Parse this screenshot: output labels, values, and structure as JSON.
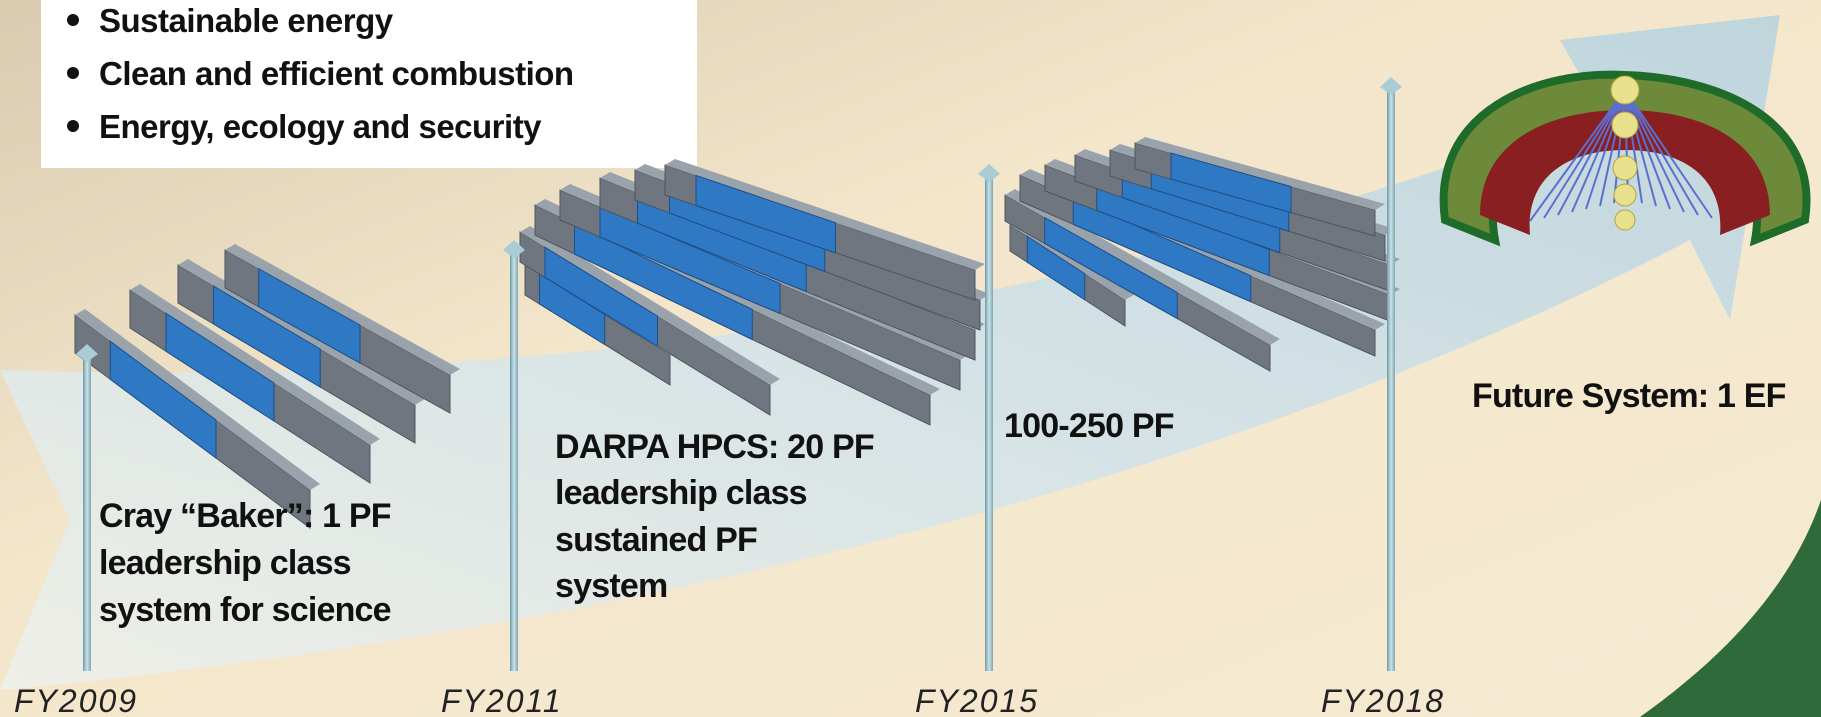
{
  "bullets": [
    "Sustainable energy",
    "Clean and efficient combustion",
    "Energy, ecology and security"
  ],
  "milestones": [
    {
      "year": "FY2009",
      "description": [
        "Cray “Baker”: 1 PF",
        "leadership class",
        "system for science"
      ]
    },
    {
      "year": "FY2011",
      "description": [
        "DARPA HPCS: 20 PF",
        "leadership class",
        "sustained PF",
        "system"
      ]
    },
    {
      "year": "FY2015",
      "description": [
        "100-250 PF"
      ]
    },
    {
      "year": "FY2018",
      "description": [
        "Future System: 1 EF"
      ]
    }
  ]
}
